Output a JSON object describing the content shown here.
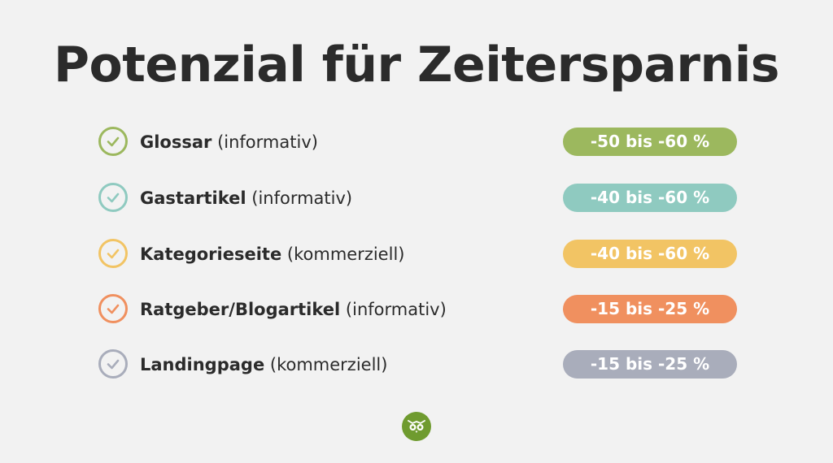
{
  "title": "Potenzial für Zeitersparnis",
  "rows": [
    {
      "name": "Glossar",
      "type": "(informativ)",
      "range": "-50 bis -60 %",
      "color": "#9cb85e"
    },
    {
      "name": "Gastartikel",
      "type": "(informativ)",
      "range": "-40 bis -60 %",
      "color": "#8fcac0"
    },
    {
      "name": "Kategorieseite",
      "type": "(kommerziell)",
      "range": "-40 bis -60 %",
      "color": "#f2c464"
    },
    {
      "name": "Ratgeber/Blogartikel",
      "type": "(informativ)",
      "range": "-15 bis -25 %",
      "color": "#f0905f"
    },
    {
      "name": "Landingpage",
      "type": "(kommerziell)",
      "range": "-15 bis -25 %",
      "color": "#a9adbb"
    }
  ],
  "logo": {
    "icon": "owl-icon",
    "color": "#6f9b2f"
  }
}
